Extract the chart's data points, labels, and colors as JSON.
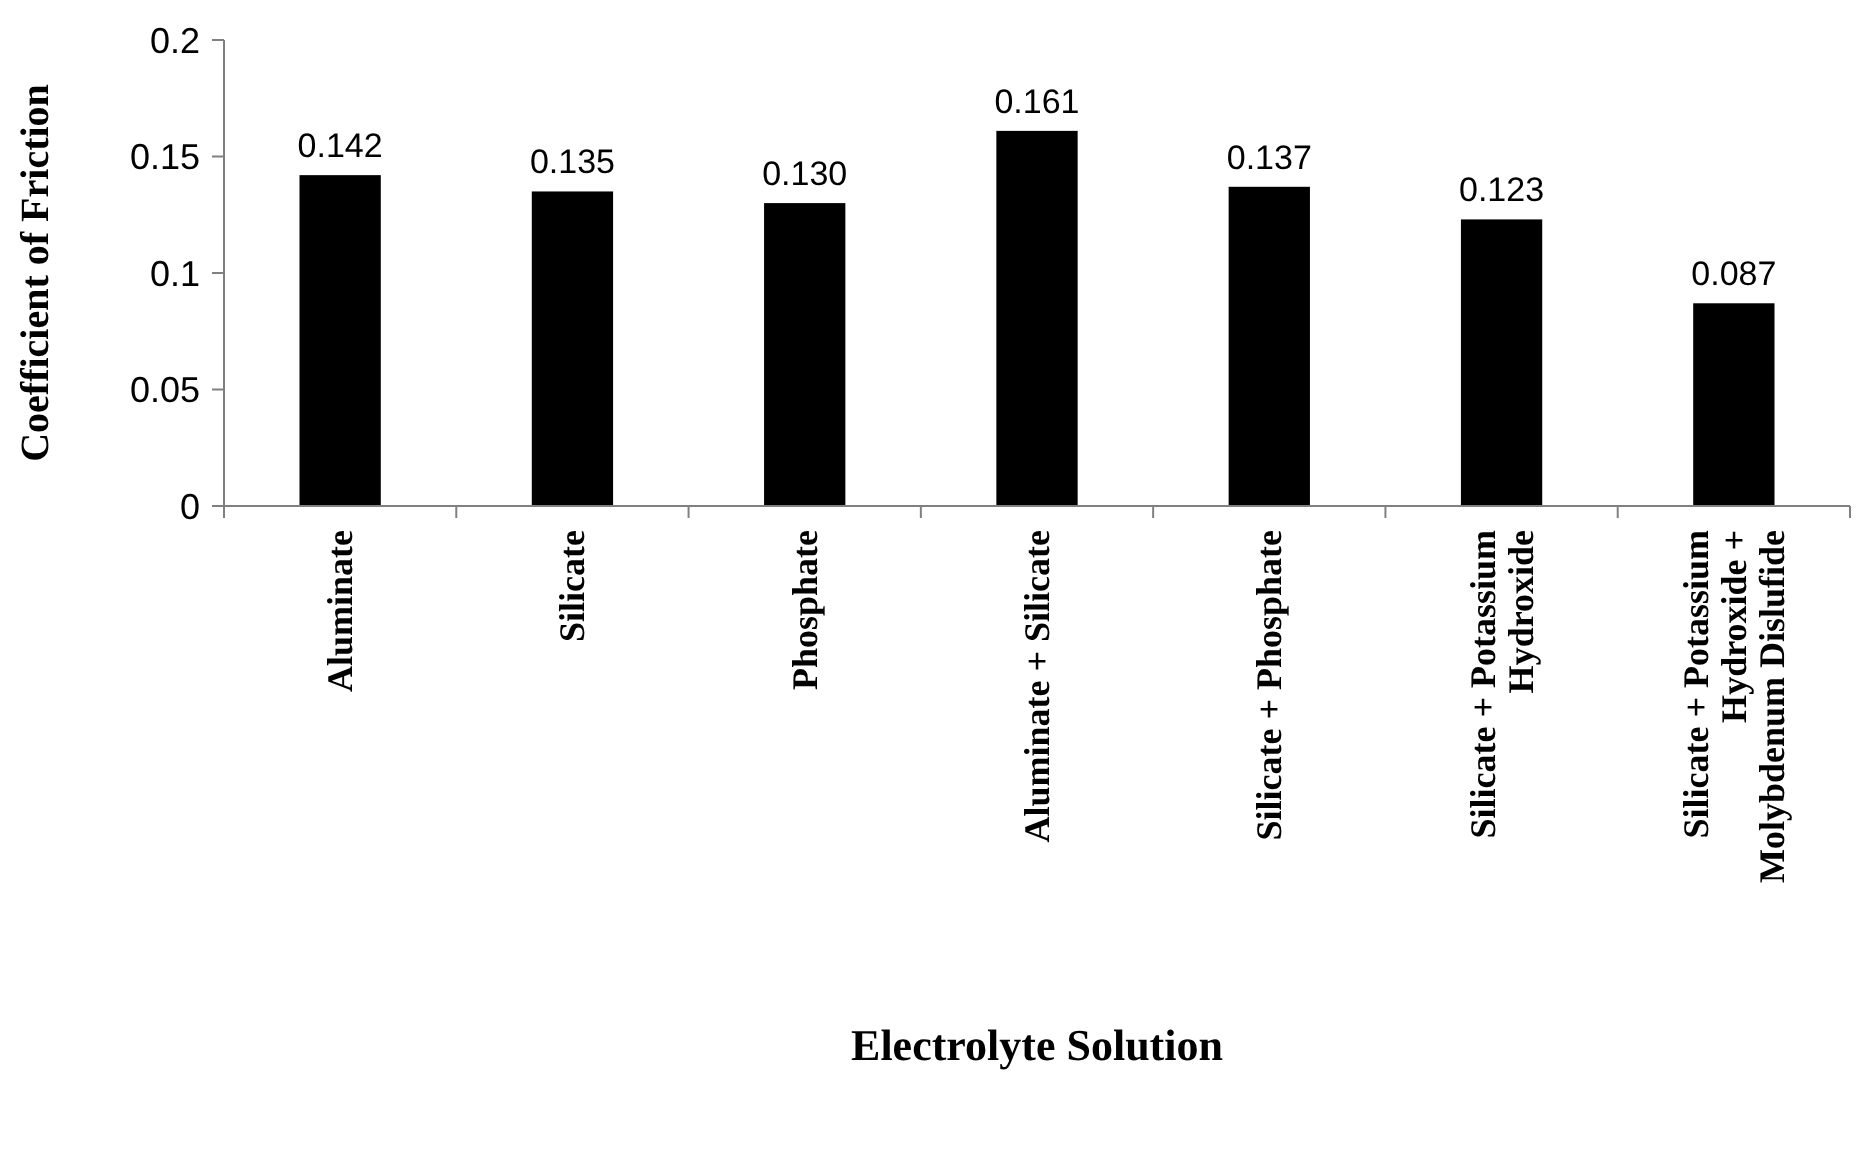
{
  "chart_data": {
    "type": "bar",
    "xlabel": "Electrolyte Solution",
    "ylabel": "Coefficient of Friction",
    "categories": [
      "Aluminate",
      "Silicate",
      "Phosphate",
      "Aluminate + Silicate",
      "Silicate + Phosphate",
      "Silicate + Potassium Hydroxide",
      "Silicate + Potassium Hydroxide + Molybdenum Dislufide"
    ],
    "values": [
      0.142,
      0.135,
      0.13,
      0.161,
      0.137,
      0.123,
      0.087
    ],
    "value_labels": [
      "0.142",
      "0.135",
      "0.130",
      "0.161",
      "0.137",
      "0.123",
      "0.087"
    ],
    "color": "#000000",
    "ylim": [
      0,
      0.2
    ],
    "yticks": [
      0,
      0.05,
      0.1,
      0.15,
      0.2
    ],
    "grid": false
  }
}
